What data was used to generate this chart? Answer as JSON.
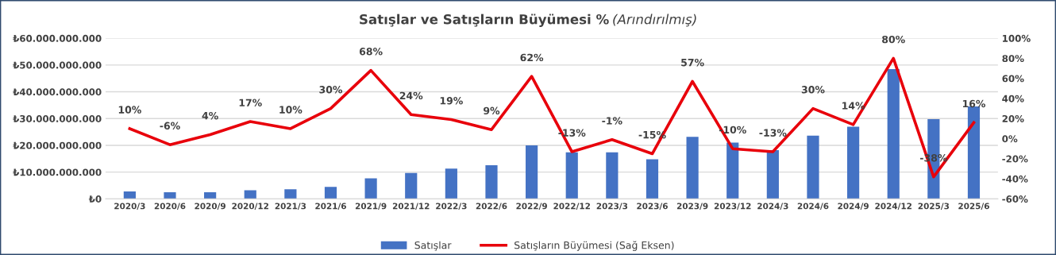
{
  "chart_data": {
    "type": "bar",
    "title": "Satışlar ve Satışların Büyümesi %",
    "subtitle": "(Arındırılmış)",
    "categories": [
      "2020/3",
      "2020/6",
      "2020/9",
      "2020/12",
      "2021/3",
      "2021/6",
      "2021/9",
      "2021/12",
      "2022/3",
      "2022/6",
      "2022/9",
      "2022/12",
      "2023/3",
      "2023/6",
      "2023/9",
      "2023/12",
      "2024/3",
      "2024/6",
      "2024/9",
      "2024/12",
      "2025/3",
      "2025/6"
    ],
    "series": [
      {
        "name": "Satışlar",
        "color": "#4472c4",
        "values": [
          2800000000,
          2500000000,
          2500000000,
          3200000000,
          3600000000,
          4500000000,
          7700000000,
          9700000000,
          11300000000,
          12600000000,
          20000000000,
          17400000000,
          17400000000,
          14800000000,
          23200000000,
          21000000000,
          18200000000,
          23600000000,
          27000000000,
          48500000000,
          29800000000,
          34500000000
        ]
      },
      {
        "name": "Satışların Büyümesi (Sağ Eksen)",
        "type": "line",
        "axis": "y2",
        "color": "#e8000b",
        "values": [
          10,
          -6,
          4,
          17,
          10,
          30,
          68,
          24,
          19,
          9,
          62,
          -13,
          -1,
          -15,
          57,
          -10,
          -13,
          30,
          14,
          80,
          -38,
          16
        ],
        "value_labels": [
          "10%",
          "-6%",
          "4%",
          "17%",
          "10%",
          "30%",
          "68%",
          "24%",
          "19%",
          "9%",
          "62%",
          "-13%",
          "-1%",
          "-15%",
          "57%",
          "-10%",
          "-13%",
          "30%",
          "14%",
          "80%",
          "-38%",
          "16%"
        ]
      }
    ],
    "ylim": [
      0,
      60000000000
    ],
    "yticks": [
      {
        "value": 0,
        "label": "₺0"
      },
      {
        "value": 10000000000,
        "label": "₺10.000.000.000"
      },
      {
        "value": 20000000000,
        "label": "₺20.000.000.000"
      },
      {
        "value": 30000000000,
        "label": "₺30.000.000.000"
      },
      {
        "value": 40000000000,
        "label": "₺40.000.000.000"
      },
      {
        "value": 50000000000,
        "label": "₺50.000.000.000"
      },
      {
        "value": 60000000000,
        "label": "₺60.000.000.000"
      }
    ],
    "y2lim": [
      -60,
      100
    ],
    "y2ticks": [
      {
        "value": -60,
        "label": "-60%"
      },
      {
        "value": -40,
        "label": "-40%"
      },
      {
        "value": -20,
        "label": "-20%"
      },
      {
        "value": 0,
        "label": "0%"
      },
      {
        "value": 20,
        "label": "20%"
      },
      {
        "value": 40,
        "label": "40%"
      },
      {
        "value": 60,
        "label": "60%"
      },
      {
        "value": 80,
        "label": "80%"
      },
      {
        "value": 100,
        "label": "100%"
      }
    ],
    "grid": "y",
    "legend": "bottom",
    "marker": "none",
    "line_style": "solid"
  }
}
